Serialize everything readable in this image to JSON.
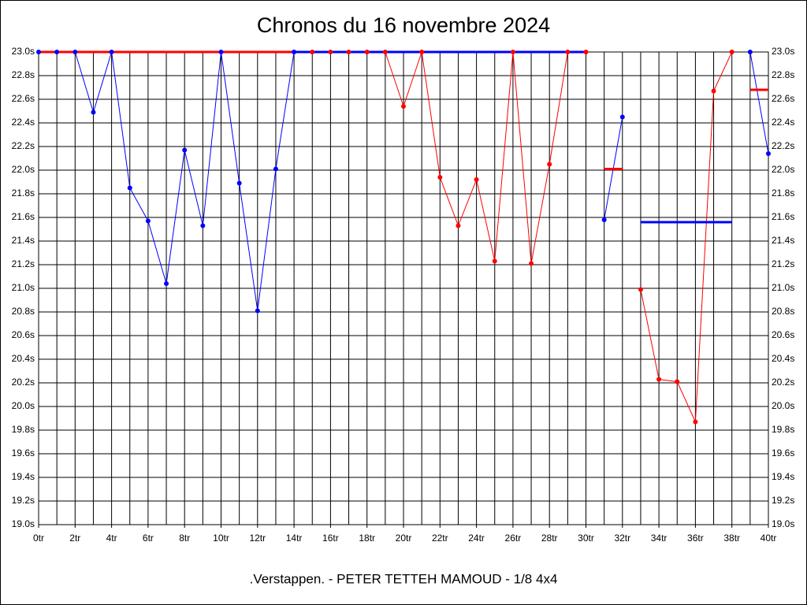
{
  "chart_data": {
    "type": "line",
    "title": "Chronos du 16 novembre 2024",
    "footer": ".Verstappen. - PETER TETTEH MAMOUD - 1/8 4x4",
    "x": [
      0,
      1,
      2,
      3,
      4,
      5,
      6,
      7,
      8,
      9,
      10,
      11,
      12,
      13,
      14,
      15,
      16,
      17,
      18,
      19,
      20,
      21,
      22,
      23,
      24,
      25,
      26,
      27,
      28,
      29,
      30,
      31,
      32,
      33,
      34,
      35,
      36,
      37,
      38,
      39,
      40
    ],
    "series": [
      {
        "color": "#0000ff",
        "values": [
          23.0,
          23.0,
          23.0,
          22.49,
          23.0,
          21.85,
          21.57,
          21.04,
          22.17,
          21.53,
          23.0,
          21.89,
          20.81,
          22.01,
          23.0,
          null,
          null,
          null,
          null,
          null,
          null,
          null,
          null,
          null,
          null,
          null,
          null,
          null,
          null,
          null,
          null,
          21.58,
          22.45,
          null,
          null,
          null,
          null,
          null,
          null,
          23.0,
          22.14
        ]
      },
      {
        "color": "#ff0000",
        "values": [
          null,
          null,
          null,
          null,
          null,
          null,
          null,
          null,
          null,
          null,
          null,
          null,
          null,
          null,
          null,
          23.0,
          23.0,
          23.0,
          23.0,
          23.0,
          22.54,
          23.0,
          21.94,
          21.53,
          21.92,
          21.23,
          23.0,
          21.21,
          22.05,
          23.0,
          23.0,
          null,
          null,
          20.99,
          20.23,
          20.21,
          19.87,
          22.67,
          23.0,
          null,
          null
        ]
      }
    ],
    "segments": [
      {
        "color": "#ff0000",
        "x": [
          0,
          14
        ],
        "value": 23.0
      },
      {
        "color": "#0000ff",
        "x": [
          14,
          30
        ],
        "value": 23.0
      },
      {
        "color": "#ff0000",
        "x": [
          31,
          32
        ],
        "value": 22.01
      },
      {
        "color": "#0000ff",
        "x": [
          33,
          38
        ],
        "value": 21.56
      },
      {
        "color": "#ff0000",
        "x": [
          39,
          40
        ],
        "value": 22.68
      }
    ],
    "xlim": [
      0,
      40
    ],
    "xticks": [
      {
        "value": 0,
        "label": "0tr"
      },
      {
        "value": 2,
        "label": "2tr"
      },
      {
        "value": 4,
        "label": "4tr"
      },
      {
        "value": 6,
        "label": "6tr"
      },
      {
        "value": 8,
        "label": "8tr"
      },
      {
        "value": 10,
        "label": "10tr"
      },
      {
        "value": 12,
        "label": "12tr"
      },
      {
        "value": 14,
        "label": "14tr"
      },
      {
        "value": 16,
        "label": "16tr"
      },
      {
        "value": 18,
        "label": "18tr"
      },
      {
        "value": 20,
        "label": "20tr"
      },
      {
        "value": 22,
        "label": "22tr"
      },
      {
        "value": 24,
        "label": "24tr"
      },
      {
        "value": 26,
        "label": "26tr"
      },
      {
        "value": 28,
        "label": "28tr"
      },
      {
        "value": 30,
        "label": "30tr"
      },
      {
        "value": 32,
        "label": "32tr"
      },
      {
        "value": 34,
        "label": "34tr"
      },
      {
        "value": 36,
        "label": "36tr"
      },
      {
        "value": 38,
        "label": "38tr"
      },
      {
        "value": 40,
        "label": "40tr"
      }
    ],
    "xgrid_minor": [
      1,
      3,
      5,
      7,
      9,
      11,
      13,
      15,
      17,
      19,
      21,
      23,
      25,
      27,
      29,
      31,
      33,
      35,
      37,
      39
    ],
    "ylim": [
      19.0,
      23.0
    ],
    "yticks": [
      {
        "value": 19.0,
        "label": "19.0s"
      },
      {
        "value": 19.2,
        "label": "19.2s"
      },
      {
        "value": 19.4,
        "label": "19.4s"
      },
      {
        "value": 19.6,
        "label": "19.6s"
      },
      {
        "value": 19.8,
        "label": "19.8s"
      },
      {
        "value": 20.0,
        "label": "20.0s"
      },
      {
        "value": 20.2,
        "label": "20.2s"
      },
      {
        "value": 20.4,
        "label": "20.4s"
      },
      {
        "value": 20.6,
        "label": "20.6s"
      },
      {
        "value": 20.8,
        "label": "20.8s"
      },
      {
        "value": 21.0,
        "label": "21.0s"
      },
      {
        "value": 21.2,
        "label": "21.2s"
      },
      {
        "value": 21.4,
        "label": "21.4s"
      },
      {
        "value": 21.6,
        "label": "21.6s"
      },
      {
        "value": 21.8,
        "label": "21.8s"
      },
      {
        "value": 22.0,
        "label": "22.0s"
      },
      {
        "value": 22.2,
        "label": "22.2s"
      },
      {
        "value": 22.4,
        "label": "22.4s"
      },
      {
        "value": 22.6,
        "label": "22.6s"
      },
      {
        "value": 22.8,
        "label": "22.8s"
      },
      {
        "value": 23.0,
        "label": "23.0s"
      }
    ],
    "grid": true
  }
}
